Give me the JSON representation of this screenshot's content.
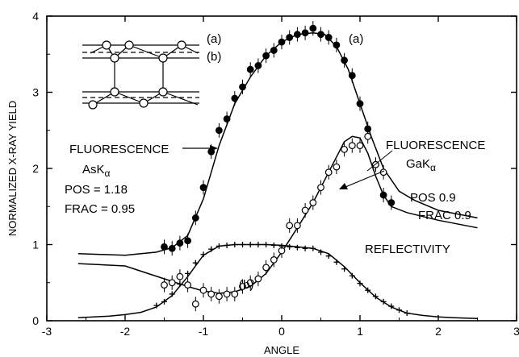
{
  "chart_data": {
    "type": "scatter",
    "title": "",
    "xlabel": "ANGLE",
    "ylabel": "NORMALIZED X-RAY YIELD",
    "xlim": [
      -3,
      3
    ],
    "ylim": [
      0,
      4
    ],
    "x_ticks": [
      -3,
      -2,
      -1,
      0,
      1,
      2,
      3
    ],
    "x_tick_labels": [
      "-3",
      "-2",
      "-1",
      "0",
      "1",
      "2",
      "3"
    ],
    "y_ticks": [
      0,
      1,
      2,
      3,
      4
    ],
    "y_tick_labels": [
      "0",
      "1",
      "2",
      "3",
      "4"
    ],
    "grid": false,
    "series": [
      {
        "name": "FLUORESCENCE AsKα",
        "marker": "filled-circle",
        "x": [
          -1.5,
          -1.4,
          -1.3,
          -1.2,
          -1.1,
          -1.0,
          -0.9,
          -0.8,
          -0.7,
          -0.6,
          -0.5,
          -0.4,
          -0.3,
          -0.2,
          -0.1,
          0.0,
          0.1,
          0.2,
          0.3,
          0.4,
          0.5,
          0.6,
          0.7,
          0.8,
          0.9,
          1.0,
          1.1,
          1.2,
          1.3,
          1.4
        ],
        "y": [
          0.97,
          0.95,
          1.02,
          1.05,
          1.35,
          1.75,
          2.22,
          2.5,
          2.65,
          2.92,
          3.07,
          3.3,
          3.35,
          3.48,
          3.55,
          3.66,
          3.72,
          3.76,
          3.78,
          3.84,
          3.76,
          3.72,
          3.62,
          3.42,
          3.22,
          2.85,
          2.52,
          2.05,
          1.65,
          1.55
        ]
      },
      {
        "name": "FLUORESCENCE GaKα",
        "marker": "open-circle",
        "x": [
          -1.5,
          -1.4,
          -1.3,
          -1.2,
          -1.1,
          -1.0,
          -0.9,
          -0.8,
          -0.7,
          -0.6,
          -0.5,
          -0.4,
          -0.3,
          -0.2,
          -0.1,
          0.0,
          0.1,
          0.2,
          0.3,
          0.4,
          0.5,
          0.6,
          0.7,
          0.8,
          0.9,
          1.0,
          1.1,
          1.2,
          1.3
        ],
        "y": [
          0.47,
          0.5,
          0.58,
          0.47,
          0.22,
          0.4,
          0.35,
          0.32,
          0.35,
          0.35,
          0.45,
          0.5,
          0.55,
          0.7,
          0.8,
          0.92,
          1.25,
          1.25,
          1.45,
          1.55,
          1.75,
          1.95,
          2.02,
          2.25,
          2.3,
          2.3,
          2.42,
          2.05,
          1.95
        ]
      },
      {
        "name": "REFLECTIVITY",
        "marker": "plus",
        "x": [
          -1.6,
          -1.5,
          -1.4,
          -1.3,
          -1.2,
          -1.1,
          -1.0,
          -0.9,
          -0.8,
          -0.7,
          -0.6,
          -0.5,
          -0.4,
          -0.3,
          -0.2,
          -0.1,
          0.0,
          0.1,
          0.2,
          0.3,
          0.4,
          0.5,
          0.6,
          0.7,
          0.8,
          0.9,
          1.0,
          1.1,
          1.2,
          1.3,
          1.4,
          1.5,
          1.6
        ],
        "y": [
          0.2,
          0.25,
          0.35,
          0.48,
          0.62,
          0.76,
          0.87,
          0.94,
          0.98,
          0.99,
          1.0,
          1.0,
          1.0,
          1.0,
          1.0,
          0.99,
          0.98,
          0.97,
          0.96,
          0.95,
          0.95,
          0.9,
          0.85,
          0.77,
          0.68,
          0.59,
          0.49,
          0.4,
          0.32,
          0.25,
          0.19,
          0.14,
          0.1
        ]
      }
    ],
    "fit_curves": [
      {
        "x": [
          -2.6,
          -2.0,
          -1.6,
          -1.4,
          -1.2,
          -1.0,
          -0.8,
          -0.6,
          -0.4,
          -0.2,
          0.0,
          0.2,
          0.4,
          0.55,
          0.7,
          0.85,
          1.0,
          1.15,
          1.3,
          1.5,
          1.7,
          2.0,
          2.5
        ],
        "y": [
          0.88,
          0.86,
          0.9,
          0.96,
          1.12,
          1.6,
          2.3,
          2.85,
          3.2,
          3.48,
          3.66,
          3.76,
          3.78,
          3.76,
          3.6,
          3.3,
          2.85,
          2.4,
          2.0,
          1.7,
          1.58,
          1.45,
          1.35
        ]
      },
      {
        "x": [
          -2.6,
          -2.0,
          -1.5,
          -1.2,
          -1.0,
          -0.8,
          -0.6,
          -0.4,
          -0.2,
          0.0,
          0.2,
          0.4,
          0.6,
          0.8,
          0.9,
          1.0,
          1.1,
          1.2,
          1.3,
          1.4,
          1.6,
          2.0,
          2.5
        ],
        "y": [
          0.75,
          0.72,
          0.55,
          0.45,
          0.39,
          0.36,
          0.38,
          0.45,
          0.62,
          0.9,
          1.22,
          1.55,
          1.95,
          2.35,
          2.42,
          2.4,
          2.2,
          1.9,
          1.65,
          1.5,
          1.42,
          1.32,
          1.22
        ]
      },
      {
        "x": [
          -2.6,
          -2.2,
          -2.0,
          -1.8,
          -1.6,
          -1.4,
          -1.2,
          -1.0,
          -0.8,
          -0.6,
          -0.4,
          -0.2,
          0.0,
          0.2,
          0.4,
          0.6,
          0.8,
          1.0,
          1.2,
          1.4,
          1.6,
          1.8,
          2.0,
          2.2,
          2.5
        ],
        "y": [
          0.04,
          0.06,
          0.08,
          0.11,
          0.18,
          0.33,
          0.58,
          0.86,
          0.98,
          1.0,
          1.0,
          1.0,
          0.99,
          0.97,
          0.95,
          0.88,
          0.71,
          0.5,
          0.31,
          0.18,
          0.1,
          0.07,
          0.05,
          0.04,
          0.03
        ]
      }
    ],
    "annotations": {
      "as_title": "FLUORESCENCE",
      "as_element": "AsK",
      "as_sub": "α",
      "as_pos": "POS = 1.18",
      "as_frac": "FRAC = 0.95",
      "ga_title": "FLUORESCENCE",
      "ga_element": "GaK",
      "ga_sub": "α",
      "ga_pos": "POS 0.9",
      "ga_frac": "FRAC 0.9",
      "reflectivity": "REFLECTIVITY",
      "label_a_top": "(a)",
      "label_b_low": "(b)",
      "inset_a": "(a)",
      "inset_b": "(b)"
    }
  }
}
